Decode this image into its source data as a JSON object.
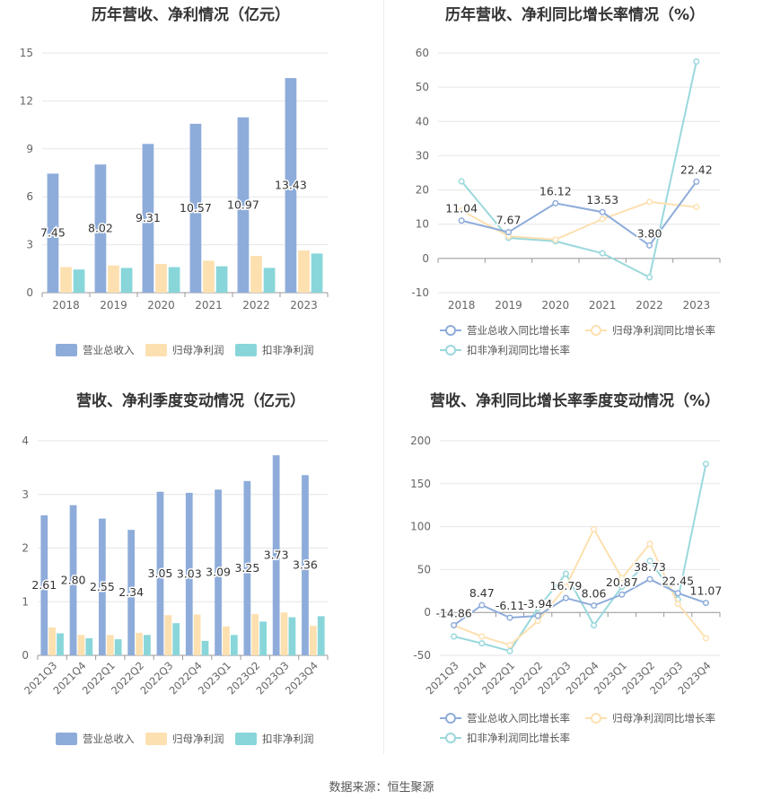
{
  "footer": {
    "source": "数据来源：恒生聚源"
  },
  "colors": {
    "revenue": "#8eacda",
    "net_profit": "#fde0b0",
    "deducted": "#88d6d9"
  },
  "chart_data": [
    {
      "id": "annual-bar",
      "type": "bar",
      "title": "历年营收、净利情况（亿元）",
      "categories": [
        "2018",
        "2019",
        "2020",
        "2021",
        "2022",
        "2023"
      ],
      "series": [
        {
          "name": "营业总收入",
          "values": [
            7.45,
            8.02,
            9.31,
            10.57,
            10.97,
            13.43
          ],
          "labels": [
            "7.45",
            "8.02",
            "9.31",
            "10.57",
            "10.97",
            "13.43"
          ]
        },
        {
          "name": "归母净利润",
          "values": [
            1.6,
            1.7,
            1.8,
            2.0,
            2.3,
            2.65
          ]
        },
        {
          "name": "扣非净利润",
          "values": [
            1.45,
            1.55,
            1.6,
            1.65,
            1.55,
            2.45
          ]
        }
      ],
      "ylim": [
        0,
        15
      ],
      "yticks": [
        "0",
        "3",
        "6",
        "9",
        "12",
        "15"
      ],
      "grid": true,
      "legend": "bottom"
    },
    {
      "id": "annual-growth",
      "type": "line",
      "title": "历年营收、净利同比增长率情况（%）",
      "categories": [
        "2018",
        "2019",
        "2020",
        "2021",
        "2022",
        "2023"
      ],
      "series": [
        {
          "name": "营业总收入同比增长率",
          "values": [
            11.04,
            7.67,
            16.12,
            13.53,
            3.8,
            22.42
          ],
          "labels": [
            "11.04",
            "7.67",
            "16.12",
            "13.53",
            "3.80",
            "22.42"
          ]
        },
        {
          "name": "归母净利润同比增长率",
          "values": [
            14,
            6.5,
            5.5,
            11.5,
            16.5,
            15
          ]
        },
        {
          "name": "扣非净利润同比增长率",
          "values": [
            22.5,
            6,
            5,
            1.5,
            -5.5,
            57.5
          ]
        }
      ],
      "ylim": [
        -10,
        60
      ],
      "yticks": [
        "-10",
        "0",
        "10",
        "20",
        "30",
        "40",
        "50",
        "60"
      ],
      "grid": true,
      "legend": "bottom"
    },
    {
      "id": "quarterly-bar",
      "type": "bar",
      "title": "营收、净利季度变动情况（亿元）",
      "categories": [
        "2021Q3",
        "2021Q4",
        "2022Q1",
        "2022Q2",
        "2022Q3",
        "2022Q4",
        "2023Q1",
        "2023Q2",
        "2023Q3",
        "2023Q4"
      ],
      "series": [
        {
          "name": "营业总收入",
          "values": [
            2.61,
            2.8,
            2.55,
            2.34,
            3.05,
            3.03,
            3.09,
            3.25,
            3.73,
            3.36
          ],
          "labels": [
            "2.61",
            "2.80",
            "2.55",
            "2.34",
            "3.05",
            "3.03",
            "3.09",
            "3.25",
            "3.73",
            "3.36"
          ]
        },
        {
          "name": "归母净利润",
          "values": [
            0.52,
            0.38,
            0.38,
            0.42,
            0.75,
            0.76,
            0.54,
            0.77,
            0.8,
            0.55
          ]
        },
        {
          "name": "扣非净利润",
          "values": [
            0.41,
            0.32,
            0.3,
            0.38,
            0.6,
            0.27,
            0.38,
            0.63,
            0.71,
            0.73
          ]
        }
      ],
      "ylim": [
        0,
        4
      ],
      "yticks": [
        "0",
        "1",
        "2",
        "3",
        "4"
      ],
      "grid": true,
      "legend": "bottom"
    },
    {
      "id": "quarterly-growth",
      "type": "line",
      "title": "营收、净利同比增长率季度变动情况（%）",
      "categories": [
        "2021Q3",
        "2021Q4",
        "2022Q1",
        "2022Q2",
        "2022Q3",
        "2022Q4",
        "2023Q1",
        "2023Q2",
        "2023Q3",
        "2023Q4"
      ],
      "series": [
        {
          "name": "营业总收入同比增长率",
          "values": [
            -14.86,
            8.47,
            -6.11,
            -3.94,
            16.79,
            8.06,
            20.87,
            38.73,
            22.45,
            11.07
          ],
          "labels": [
            "-14.86",
            "8.47",
            "-6.11",
            "-3.94",
            "16.79",
            "8.06",
            "20.87",
            "38.73",
            "22.45",
            "11.07"
          ]
        },
        {
          "name": "归母净利润同比增长率",
          "values": [
            -15,
            -28,
            -38,
            -10,
            30,
            97,
            40,
            80,
            10,
            -30
          ]
        },
        {
          "name": "扣非净利润同比增长率",
          "values": [
            -28,
            -36,
            -45,
            5,
            45,
            -15,
            30,
            60,
            15,
            173
          ]
        }
      ],
      "ylim": [
        -50,
        200
      ],
      "yticks": [
        "-50",
        "0",
        "50",
        "100",
        "150",
        "200"
      ],
      "grid": true,
      "legend": "bottom"
    }
  ]
}
